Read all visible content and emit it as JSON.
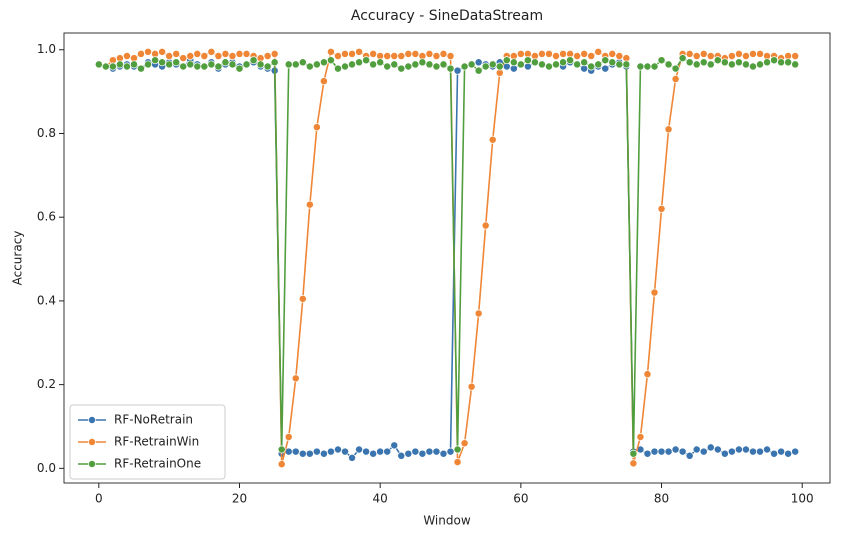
{
  "chart_data": {
    "type": "line",
    "title": "Accuracy - SineDataStream",
    "x_label": "Window",
    "y_label": "Accuracy",
    "x": [
      0,
      1,
      2,
      3,
      4,
      5,
      6,
      7,
      8,
      9,
      10,
      11,
      12,
      13,
      14,
      15,
      16,
      17,
      18,
      19,
      20,
      21,
      22,
      23,
      24,
      25,
      26,
      27,
      28,
      29,
      30,
      31,
      32,
      33,
      34,
      35,
      36,
      37,
      38,
      39,
      40,
      41,
      42,
      43,
      44,
      45,
      46,
      47,
      48,
      49,
      50,
      51,
      52,
      53,
      54,
      55,
      56,
      57,
      58,
      59,
      60,
      61,
      62,
      63,
      64,
      65,
      66,
      67,
      68,
      69,
      70,
      71,
      72,
      73,
      74,
      75,
      76,
      77,
      78,
      79,
      80,
      81,
      82,
      83,
      84,
      85,
      86,
      87,
      88,
      89,
      90,
      91,
      92,
      93,
      94,
      95,
      96,
      97,
      98,
      99
    ],
    "series": [
      {
        "name": "RF-NoRetrain",
        "color": "#3b75af",
        "values": [
          0.965,
          0.96,
          0.955,
          0.96,
          0.965,
          0.96,
          0.955,
          0.97,
          0.965,
          0.96,
          0.97,
          0.965,
          0.96,
          0.975,
          0.965,
          0.96,
          0.97,
          0.955,
          0.965,
          0.97,
          0.96,
          0.965,
          0.97,
          0.96,
          0.955,
          0.95,
          0.035,
          0.04,
          0.04,
          0.035,
          0.035,
          0.04,
          0.035,
          0.04,
          0.045,
          0.04,
          0.025,
          0.045,
          0.04,
          0.035,
          0.04,
          0.04,
          0.055,
          0.03,
          0.035,
          0.04,
          0.035,
          0.04,
          0.04,
          0.035,
          0.04,
          0.95,
          0.96,
          0.965,
          0.97,
          0.965,
          0.96,
          0.97,
          0.96,
          0.955,
          0.965,
          0.96,
          0.97,
          0.965,
          0.96,
          0.965,
          0.96,
          0.97,
          0.965,
          0.955,
          0.95,
          0.96,
          0.955,
          0.965,
          0.97,
          0.96,
          0.04,
          0.045,
          0.035,
          0.04,
          0.04,
          0.04,
          0.045,
          0.04,
          0.03,
          0.045,
          0.04,
          0.05,
          0.045,
          0.035,
          0.04,
          0.045,
          0.045,
          0.04,
          0.04,
          0.045,
          0.035,
          0.04,
          0.035,
          0.04
        ]
      },
      {
        "name": "RF-RetrainWin",
        "color": "#ef8636",
        "values": [
          0.965,
          0.96,
          0.975,
          0.98,
          0.985,
          0.98,
          0.99,
          0.995,
          0.99,
          0.995,
          0.985,
          0.99,
          0.98,
          0.985,
          0.99,
          0.985,
          0.995,
          0.985,
          0.99,
          0.985,
          0.99,
          0.99,
          0.985,
          0.98,
          0.985,
          0.99,
          0.01,
          0.075,
          0.215,
          0.405,
          0.63,
          0.815,
          0.925,
          0.995,
          0.985,
          0.99,
          0.99,
          0.995,
          0.985,
          0.99,
          0.985,
          0.985,
          0.985,
          0.985,
          0.99,
          0.99,
          0.985,
          0.99,
          0.985,
          0.99,
          0.985,
          0.015,
          0.06,
          0.195,
          0.37,
          0.58,
          0.785,
          0.945,
          0.985,
          0.985,
          0.99,
          0.99,
          0.985,
          0.99,
          0.99,
          0.985,
          0.99,
          0.99,
          0.985,
          0.99,
          0.985,
          0.995,
          0.985,
          0.99,
          0.985,
          0.98,
          0.012,
          0.075,
          0.225,
          0.42,
          0.62,
          0.81,
          0.93,
          0.99,
          0.99,
          0.985,
          0.99,
          0.985,
          0.985,
          0.98,
          0.985,
          0.99,
          0.985,
          0.99,
          0.99,
          0.985,
          0.985,
          0.98,
          0.985,
          0.985
        ]
      },
      {
        "name": "RF-RetrainOne",
        "color": "#519e3e",
        "values": [
          0.965,
          0.96,
          0.96,
          0.965,
          0.96,
          0.965,
          0.955,
          0.965,
          0.975,
          0.97,
          0.965,
          0.97,
          0.96,
          0.965,
          0.96,
          0.96,
          0.965,
          0.96,
          0.97,
          0.965,
          0.955,
          0.965,
          0.975,
          0.965,
          0.96,
          0.97,
          0.045,
          0.965,
          0.965,
          0.97,
          0.96,
          0.965,
          0.97,
          0.975,
          0.955,
          0.96,
          0.965,
          0.97,
          0.975,
          0.965,
          0.97,
          0.96,
          0.965,
          0.955,
          0.96,
          0.965,
          0.97,
          0.965,
          0.96,
          0.965,
          0.955,
          0.045,
          0.96,
          0.965,
          0.95,
          0.96,
          0.965,
          0.96,
          0.975,
          0.97,
          0.965,
          0.975,
          0.97,
          0.965,
          0.96,
          0.965,
          0.97,
          0.975,
          0.965,
          0.97,
          0.96,
          0.965,
          0.975,
          0.97,
          0.965,
          0.965,
          0.035,
          0.96,
          0.96,
          0.96,
          0.975,
          0.965,
          0.955,
          0.98,
          0.97,
          0.965,
          0.97,
          0.965,
          0.975,
          0.97,
          0.965,
          0.97,
          0.965,
          0.96,
          0.965,
          0.97,
          0.975,
          0.97,
          0.97,
          0.965
        ]
      }
    ],
    "xlim": [
      -4.95,
      103.95
    ],
    "xticks": [
      0,
      20,
      40,
      60,
      80,
      100
    ],
    "ylim": [
      -0.035,
      1.04
    ],
    "yticks": [
      {
        "value": 0,
        "label": "0.0"
      },
      0.2,
      0.4,
      0.6,
      0.8,
      {
        "value": 1,
        "label": "1.0"
      }
    ],
    "grid": false,
    "legend": "lower left"
  }
}
